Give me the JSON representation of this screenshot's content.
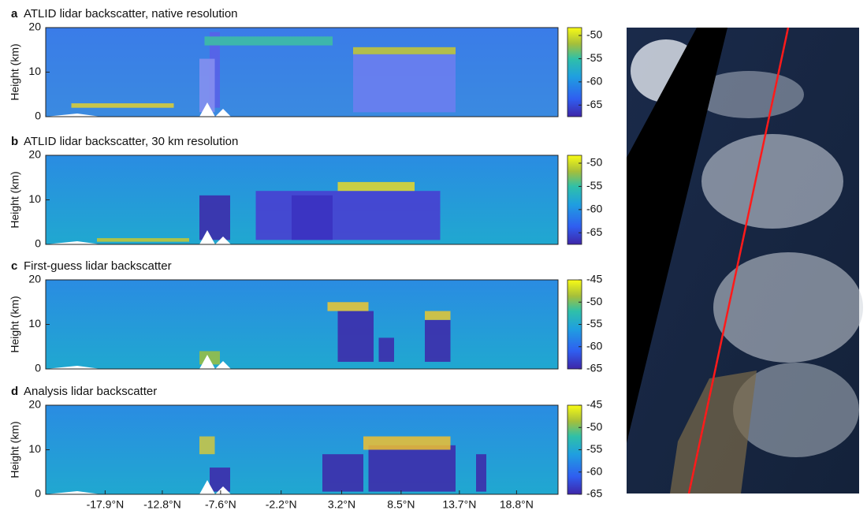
{
  "chart_data": [
    {
      "type": "heatmap",
      "label": "a",
      "title": "ATLID lidar backscatter, native resolution",
      "ylabel": "Height (km)",
      "ylim": [
        0,
        20
      ],
      "yticks": [
        0,
        10,
        20
      ],
      "clim": [
        -67.5,
        -48.3
      ],
      "cticks": [
        -50,
        -55,
        -60,
        -65
      ]
    },
    {
      "type": "heatmap",
      "label": "b",
      "title": "ATLID lidar backscatter, 30 km resolution",
      "ylabel": "Height (km)",
      "ylim": [
        0,
        20
      ],
      "yticks": [
        0,
        10,
        20
      ],
      "clim": [
        -67.5,
        -48.3
      ],
      "cticks": [
        -50,
        -55,
        -60,
        -65
      ]
    },
    {
      "type": "heatmap",
      "label": "c",
      "title": "First-guess lidar backscatter",
      "ylabel": "Height (km)",
      "ylim": [
        0,
        20
      ],
      "yticks": [
        0,
        10,
        20
      ],
      "clim": [
        -65,
        -45
      ],
      "cticks": [
        -45,
        -50,
        -55,
        -60,
        -65
      ]
    },
    {
      "type": "heatmap",
      "label": "d",
      "title": "Analysis lidar backscatter",
      "ylabel": "Height (km)",
      "ylim": [
        0,
        20
      ],
      "yticks": [
        0,
        10,
        20
      ],
      "clim": [
        -65,
        -45
      ],
      "cticks": [
        -45,
        -50,
        -55,
        -60,
        -65
      ],
      "xlim": [
        -23.2,
        22.5
      ],
      "xticks": [
        {
          "value": -17.9,
          "label": "-17.9°N"
        },
        {
          "value": -12.8,
          "label": "-12.8°N"
        },
        {
          "value": -7.6,
          "label": "-7.6°N"
        },
        {
          "value": -2.2,
          "label": "-2.2°N"
        },
        {
          "value": 3.2,
          "label": "3.2°N"
        },
        {
          "value": 8.5,
          "label": "8.5°N"
        },
        {
          "value": 13.7,
          "label": "13.7°N"
        },
        {
          "value": 18.8,
          "label": "18.8°N"
        }
      ]
    }
  ]
}
